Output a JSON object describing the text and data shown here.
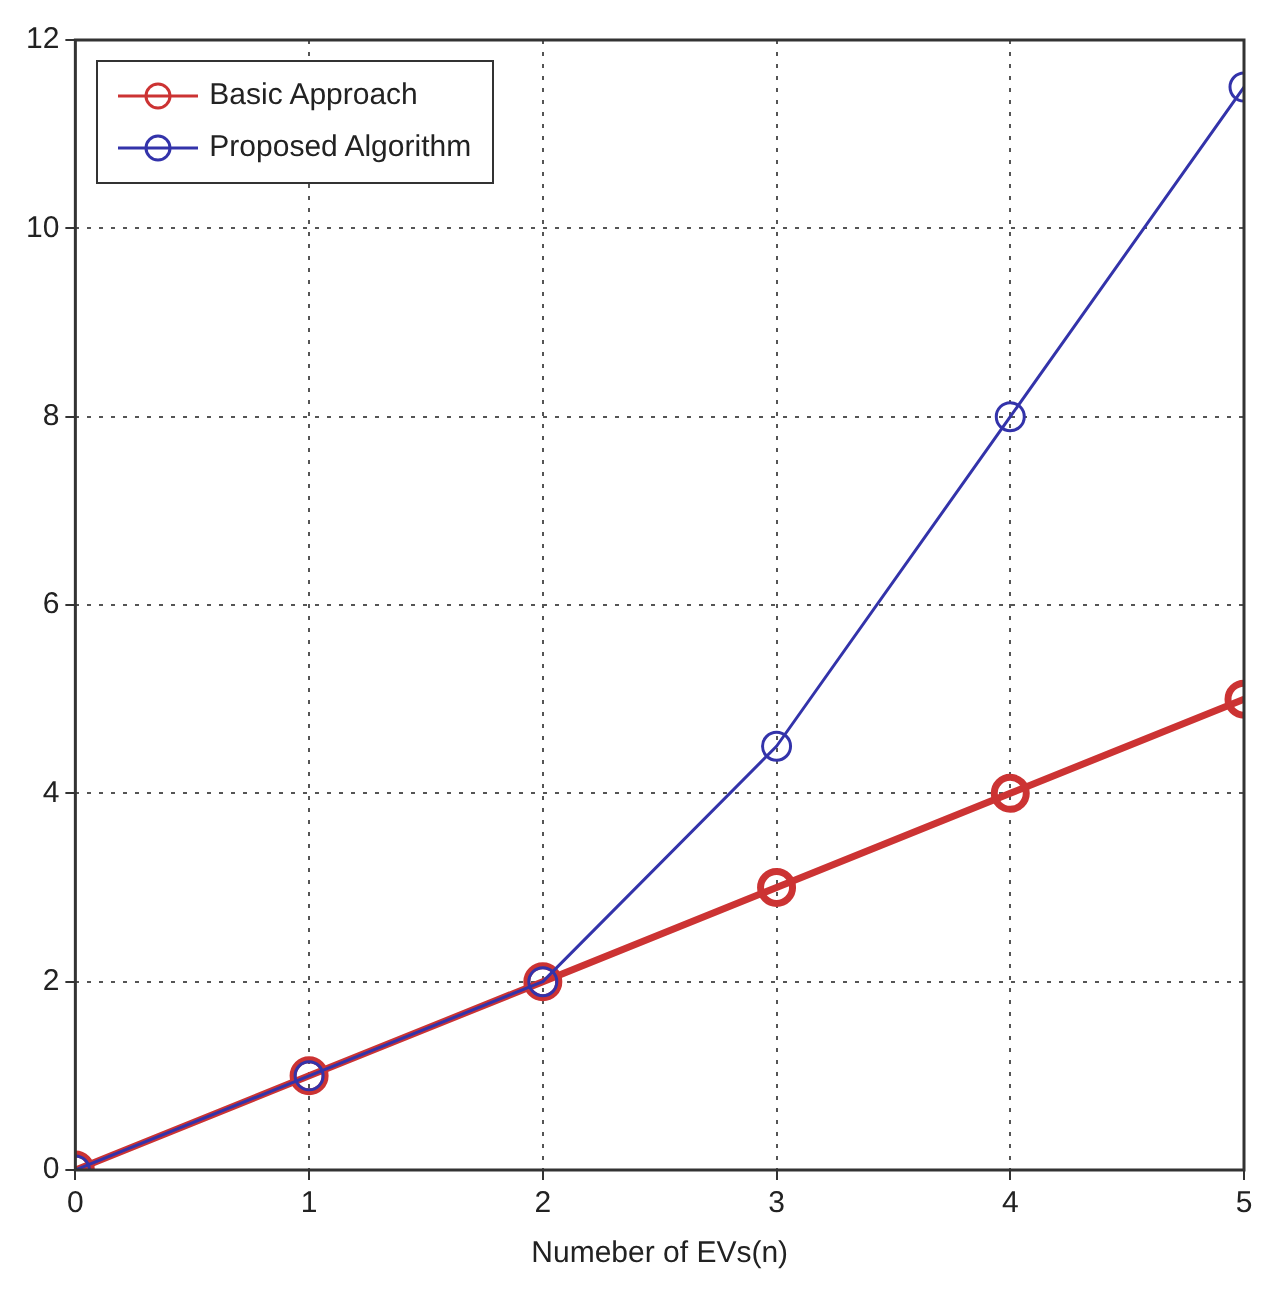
{
  "chart_data": {
    "type": "line",
    "xlabel": "Numeber of EVs(n)",
    "x": [
      0,
      1,
      2,
      3,
      4,
      5
    ],
    "series": [
      {
        "name": "Basic Approach",
        "color": "#cc3333",
        "values": [
          0,
          1,
          2,
          3,
          4,
          5
        ]
      },
      {
        "name": "Proposed Algorithm",
        "color": "#3333aa",
        "values": [
          0,
          1,
          2,
          4.5,
          8,
          11.5
        ]
      }
    ],
    "xlim": [
      0,
      5
    ],
    "xticks": [
      0,
      1,
      2,
      3,
      4,
      5
    ],
    "ylim": [
      0,
      12
    ],
    "yticks": [
      0,
      2,
      4,
      6,
      8,
      10,
      12
    ],
    "grid": true,
    "legend": "top left",
    "marker": "circle",
    "line_style": "solid"
  }
}
